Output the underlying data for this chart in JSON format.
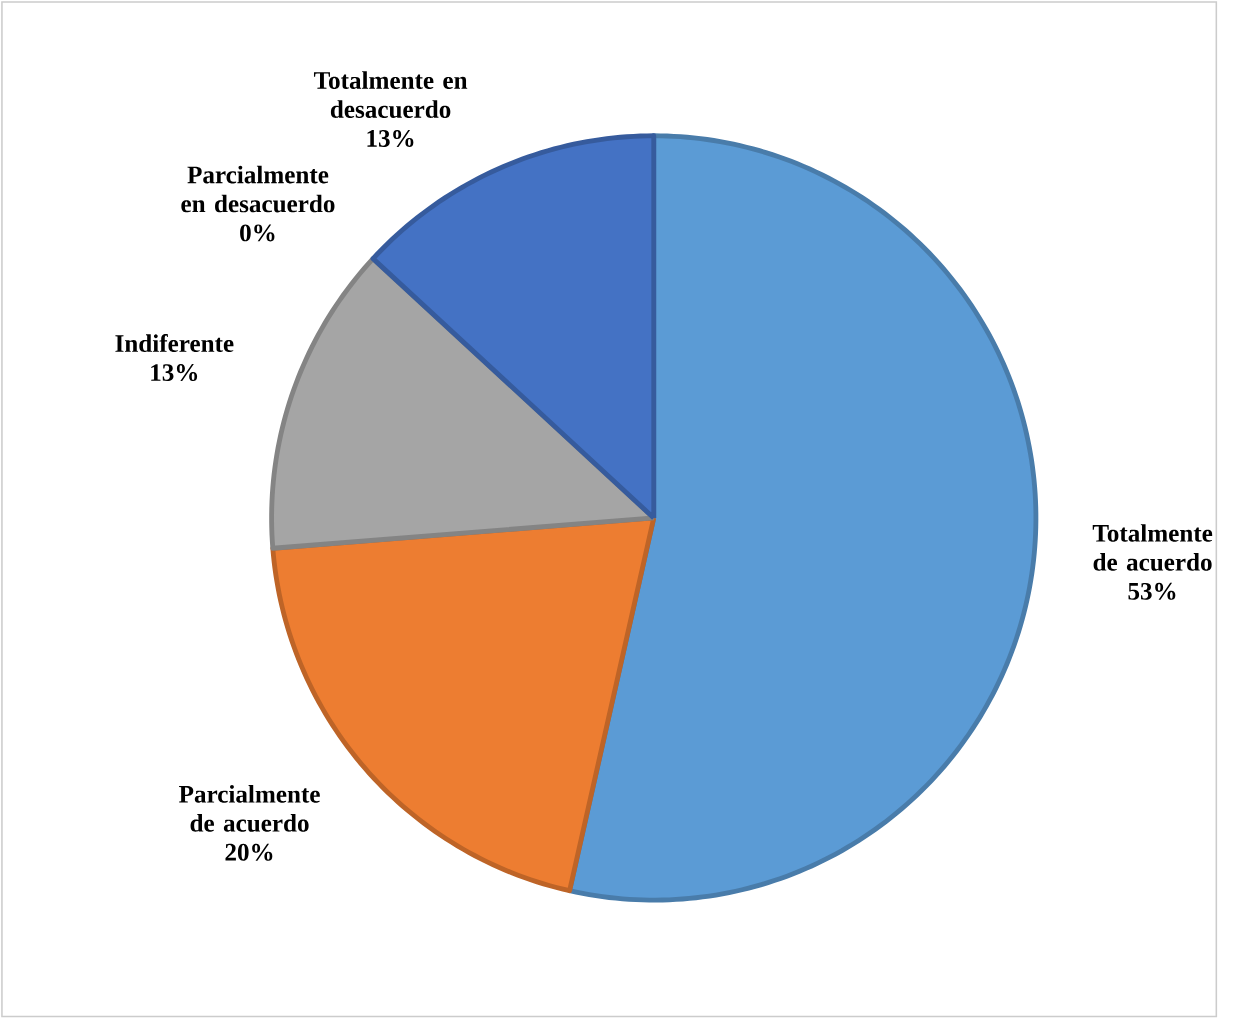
{
  "chart_data": {
    "type": "pie",
    "categories": [
      "Totalmente de acuerdo",
      "Parcialmente de acuerdo",
      "Indiferente",
      "Parcialmente en desacuerdo",
      "Totalmente en desacuerdo"
    ],
    "values": [
      53,
      20,
      13,
      0,
      13
    ],
    "colors": [
      "#5b9bd5",
      "#ed7d31",
      "#a5a5a5",
      "#ffc000",
      "#4472c4"
    ],
    "value_labels": [
      "53%",
      "20%",
      "13%",
      "0%",
      "13%"
    ]
  }
}
